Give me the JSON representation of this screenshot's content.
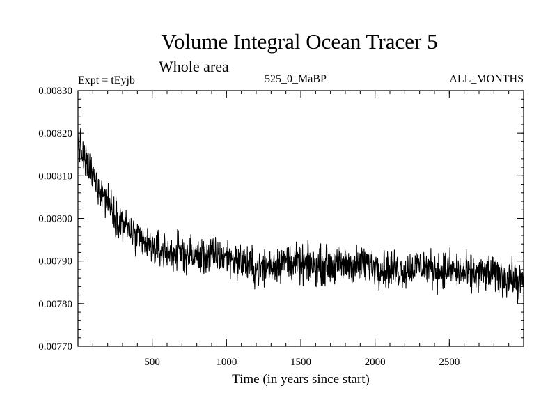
{
  "chart_data": {
    "type": "line",
    "title": "Volume Integral Ocean Tracer 5",
    "subtitle": "Whole area",
    "experiment_label": "Expt = tEyjb",
    "period_label": "525_0_MaBP",
    "months_label": "ALL_MONTHS",
    "xlabel": "Time (in years since start)",
    "ylabel": "",
    "xlim": [
      0,
      3000
    ],
    "ylim": [
      0.0077,
      0.0083
    ],
    "xticks": [
      500,
      1000,
      1500,
      2000,
      2500
    ],
    "xtick_labels": [
      "500",
      "1000",
      "1500",
      "2000",
      "2500"
    ],
    "yticks": [
      0.0077,
      0.0078,
      0.0079,
      0.008,
      0.0081,
      0.0082,
      0.0083
    ],
    "ytick_labels": [
      "0.00770",
      "0.00780",
      "0.00790",
      "0.00800",
      "0.00810",
      "0.00820",
      "0.00830"
    ],
    "series": [
      {
        "name": "Volume Integral Ocean Tracer 5",
        "color": "#000000",
        "x": [
          0,
          50,
          100,
          150,
          200,
          250,
          300,
          350,
          400,
          450,
          500,
          600,
          700,
          800,
          900,
          1000,
          1100,
          1200,
          1300,
          1400,
          1500,
          1600,
          1700,
          1800,
          1900,
          2000,
          2100,
          2200,
          2300,
          2400,
          2500,
          2600,
          2700,
          2800,
          2900,
          3000
        ],
        "y": [
          0.00818,
          0.00813,
          0.0081,
          0.00807,
          0.00804,
          0.00801,
          0.00799,
          0.00797,
          0.00795,
          0.00794,
          0.00793,
          0.00792,
          0.00792,
          0.00791,
          0.00791,
          0.00791,
          0.0079,
          0.00788,
          0.00789,
          0.0079,
          0.00789,
          0.00789,
          0.00789,
          0.00789,
          0.00789,
          0.00789,
          0.00788,
          0.00788,
          0.00789,
          0.00788,
          0.00788,
          0.00787,
          0.00787,
          0.00787,
          0.00786,
          0.00785
        ],
        "noise_amplitude": 4e-05
      }
    ]
  }
}
